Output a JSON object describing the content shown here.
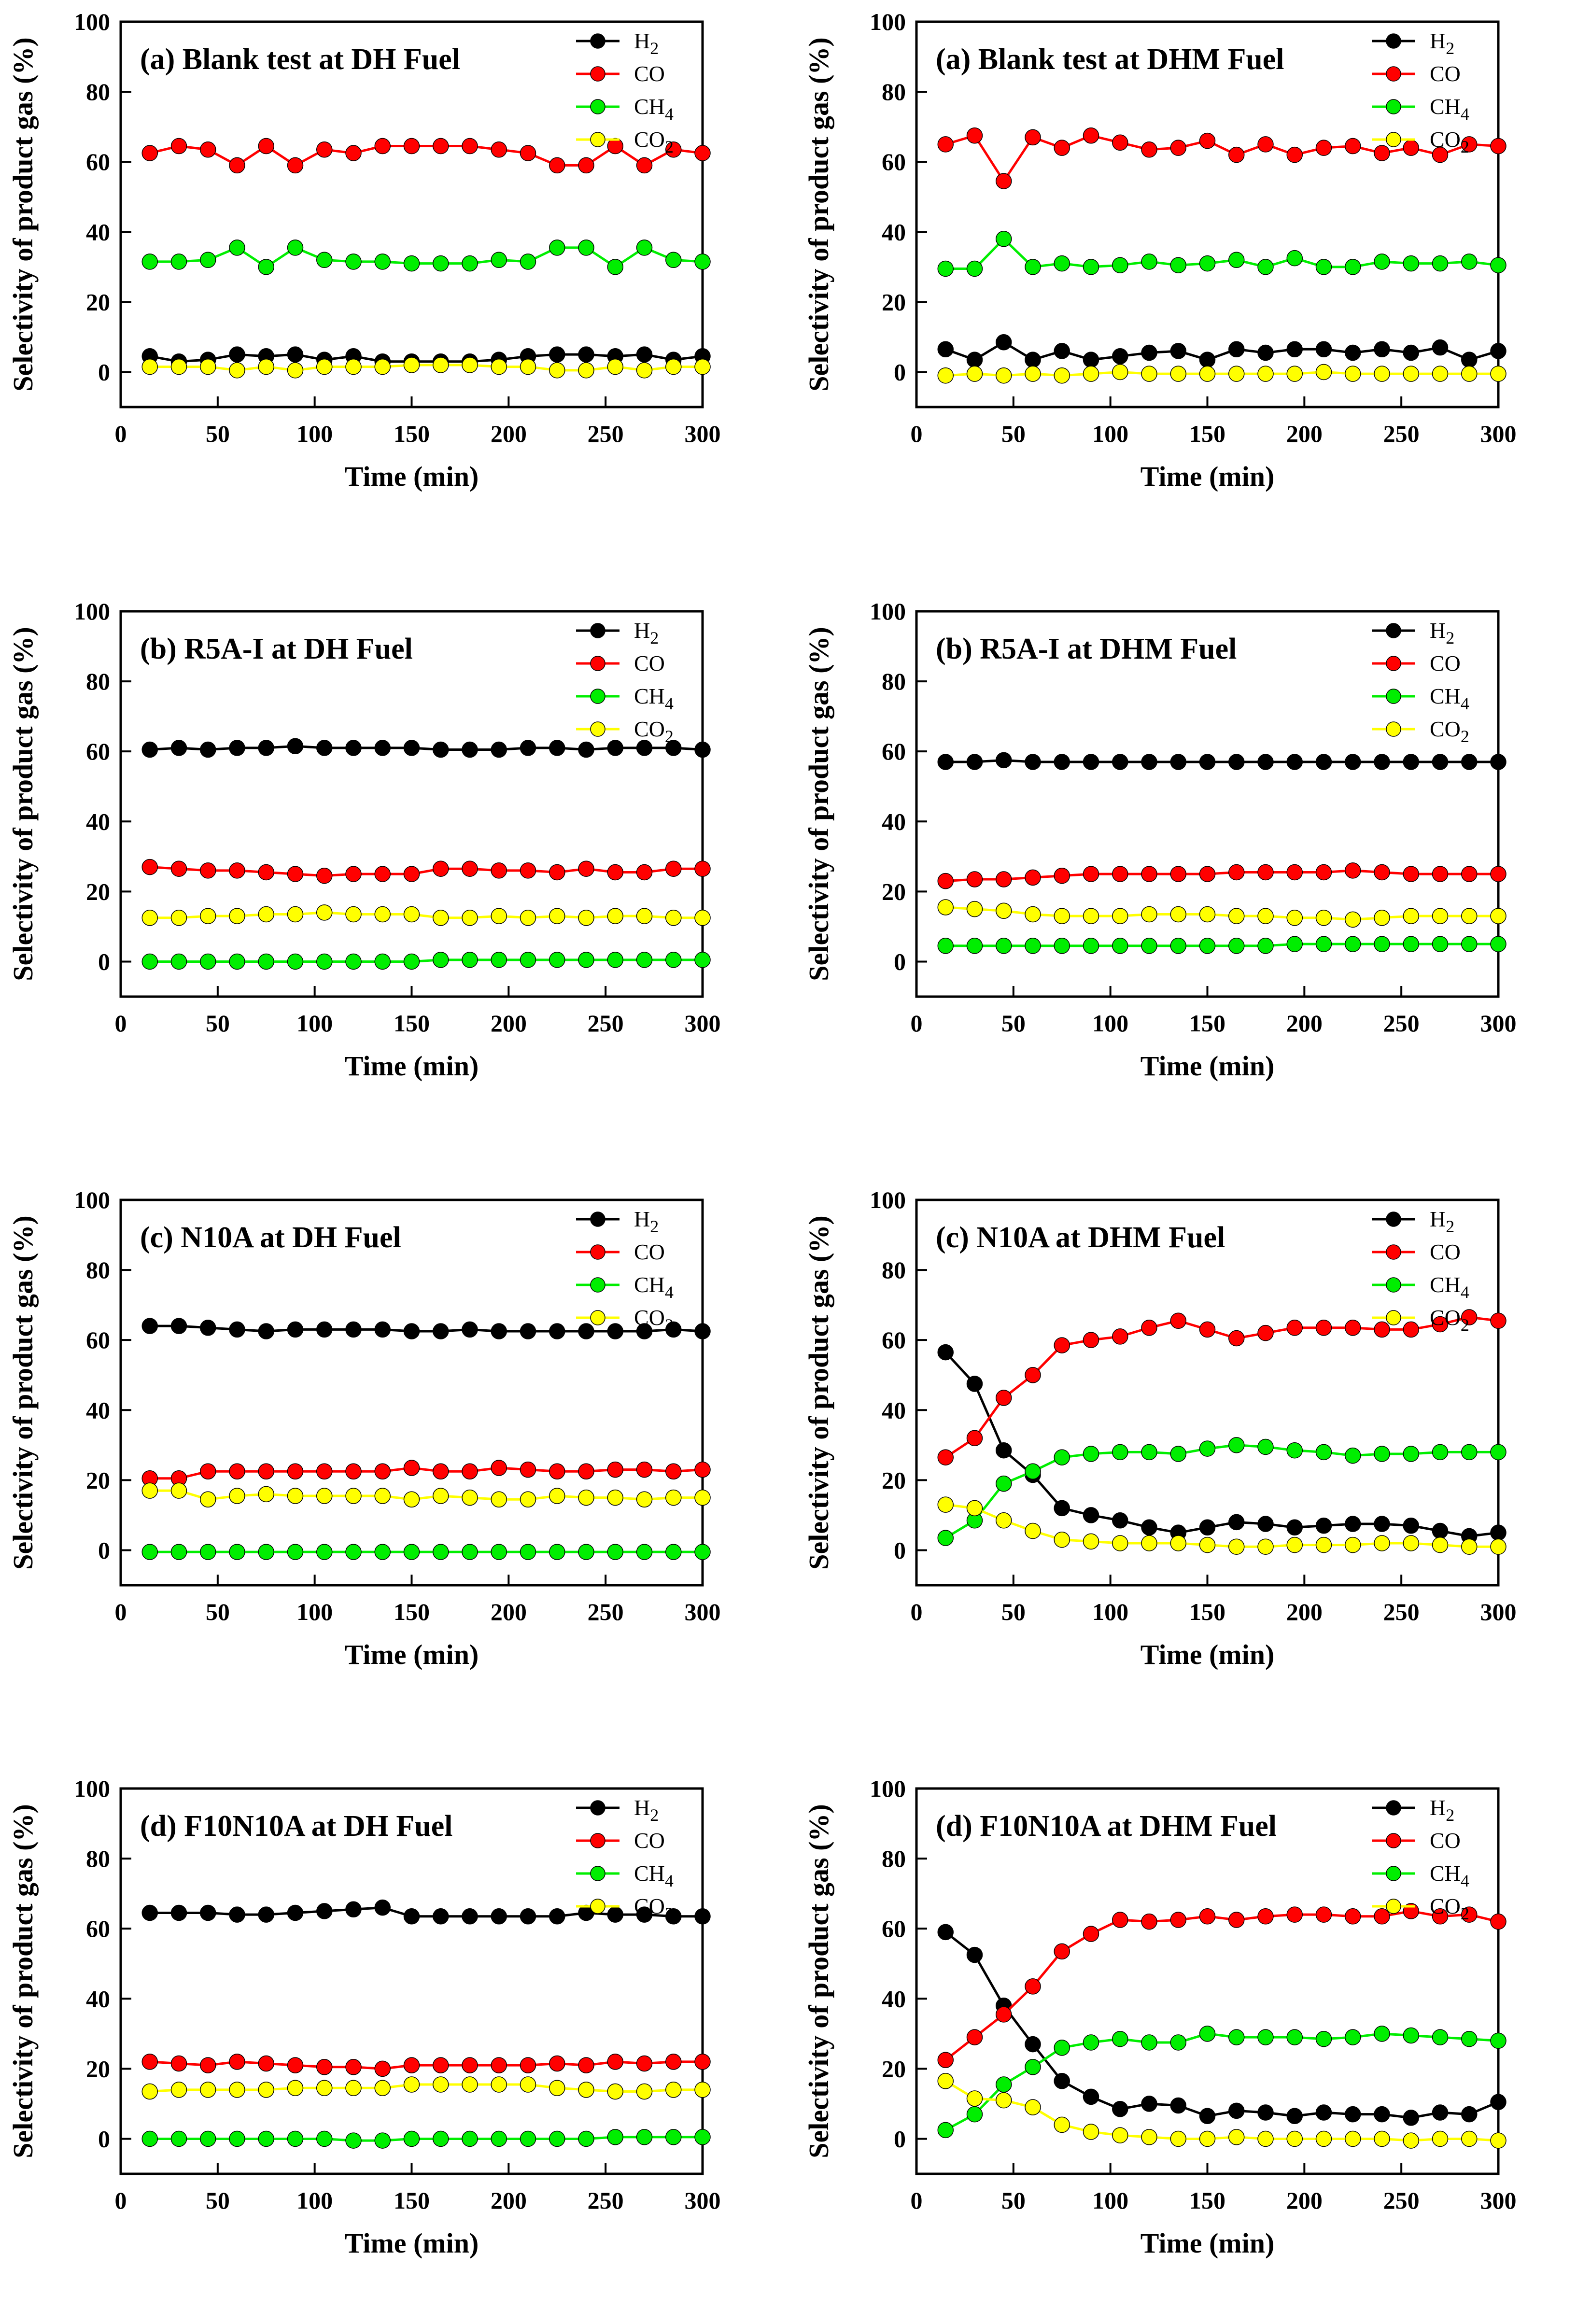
{
  "colors": {
    "H2": "#000000",
    "CO": "#ff0000",
    "CH4": "#00ee00",
    "CO2": "#ffff00"
  },
  "legend": [
    {
      "key": "H2",
      "label": "H",
      "sub": "2"
    },
    {
      "key": "CO",
      "label": "CO",
      "sub": ""
    },
    {
      "key": "CH4",
      "label": "CH",
      "sub": "4"
    },
    {
      "key": "CO2",
      "label": "CO",
      "sub": "2"
    }
  ],
  "axes": {
    "xlabel": "Time (min)",
    "ylabel": "Selectivity of product gas (%)",
    "xlim": [
      0,
      300
    ],
    "ylim": [
      -10,
      100
    ],
    "xticks": [
      0,
      50,
      100,
      150,
      200,
      250,
      300
    ],
    "yticks": [
      0,
      20,
      40,
      60,
      80,
      100
    ]
  },
  "chart_data": [
    {
      "type": "line",
      "title": "(a) Blank test at DH Fuel",
      "x": [
        15,
        30,
        45,
        60,
        75,
        90,
        105,
        120,
        135,
        150,
        165,
        180,
        195,
        210,
        225,
        240,
        255,
        270,
        285,
        300
      ],
      "series": [
        {
          "name": "H2",
          "values": [
            4.5,
            3,
            3.5,
            5,
            4.5,
            5,
            3.5,
            4.5,
            3,
            3,
            3,
            3,
            3.5,
            4.5,
            5,
            5,
            4.5,
            5,
            3.5,
            4.5
          ]
        },
        {
          "name": "CO",
          "values": [
            62.5,
            64.5,
            63.5,
            59,
            64.5,
            59,
            63.5,
            62.5,
            64.5,
            64.5,
            64.5,
            64.5,
            63.5,
            62.5,
            59,
            59,
            64.5,
            59,
            63.5,
            62.5
          ]
        },
        {
          "name": "CH4",
          "values": [
            31.5,
            31.5,
            32,
            35.5,
            30,
            35.5,
            32,
            31.5,
            31.5,
            31,
            31,
            31,
            32,
            31.5,
            35.5,
            35.5,
            30,
            35.5,
            32,
            31.5
          ]
        },
        {
          "name": "CO2",
          "values": [
            1.5,
            1.5,
            1.5,
            0.5,
            1.5,
            0.5,
            1.5,
            1.5,
            1.5,
            2,
            2,
            2,
            1.5,
            1.5,
            0.5,
            0.5,
            1.5,
            0.5,
            1.5,
            1.5
          ]
        }
      ],
      "xlabel": "Time (min)",
      "ylabel": "Selectivity of product gas (%)",
      "xlim": [
        0,
        300
      ],
      "ylim": [
        -10,
        100
      ]
    },
    {
      "type": "line",
      "title": "(a) Blank test at DHM Fuel",
      "x": [
        15,
        30,
        45,
        60,
        75,
        90,
        105,
        120,
        135,
        150,
        165,
        180,
        195,
        210,
        225,
        240,
        255,
        270,
        285,
        300
      ],
      "series": [
        {
          "name": "H2",
          "values": [
            6.5,
            3.5,
            8.5,
            3.5,
            6,
            3.5,
            4.5,
            5.5,
            6,
            3.5,
            6.5,
            5.5,
            6.5,
            6.5,
            5.5,
            6.5,
            5.5,
            7,
            3.5,
            6
          ]
        },
        {
          "name": "CO",
          "values": [
            65,
            67.5,
            54.5,
            67,
            64,
            67.5,
            65.5,
            63.5,
            64,
            66,
            62,
            65,
            62,
            64,
            64.5,
            62.5,
            64,
            62,
            65,
            64.5
          ]
        },
        {
          "name": "CH4",
          "values": [
            29.5,
            29.5,
            38,
            30,
            31,
            30,
            30.5,
            31.5,
            30.5,
            31,
            32,
            30,
            32.5,
            30,
            30,
            31.5,
            31,
            31,
            31.5,
            30.5
          ]
        },
        {
          "name": "CO2",
          "values": [
            -1,
            -0.5,
            -1,
            -0.5,
            -1,
            -0.5,
            0,
            -0.5,
            -0.5,
            -0.5,
            -0.5,
            -0.5,
            -0.5,
            0,
            -0.5,
            -0.5,
            -0.5,
            -0.5,
            -0.5,
            -0.5
          ]
        }
      ],
      "xlabel": "Time (min)",
      "ylabel": "Selectivity of product gas (%)",
      "xlim": [
        0,
        300
      ],
      "ylim": [
        -10,
        100
      ]
    },
    {
      "type": "line",
      "title": "(b) R5A-I at DH Fuel",
      "x": [
        15,
        30,
        45,
        60,
        75,
        90,
        105,
        120,
        135,
        150,
        165,
        180,
        195,
        210,
        225,
        240,
        255,
        270,
        285,
        300
      ],
      "series": [
        {
          "name": "H2",
          "values": [
            60.5,
            61,
            60.5,
            61,
            61,
            61.5,
            61,
            61,
            61,
            61,
            60.5,
            60.5,
            60.5,
            61,
            61,
            60.5,
            61,
            61,
            61,
            60.5
          ]
        },
        {
          "name": "CO",
          "values": [
            27,
            26.5,
            26,
            26,
            25.5,
            25,
            24.5,
            25,
            25,
            25,
            26.5,
            26.5,
            26,
            26,
            25.5,
            26.5,
            25.5,
            25.5,
            26.5,
            26.5
          ]
        },
        {
          "name": "CH4",
          "values": [
            0,
            0,
            0,
            0,
            0,
            0,
            0,
            0,
            0,
            0,
            0.5,
            0.5,
            0.5,
            0.5,
            0.5,
            0.5,
            0.5,
            0.5,
            0.5,
            0.5
          ]
        },
        {
          "name": "CO2",
          "values": [
            12.5,
            12.5,
            13,
            13,
            13.5,
            13.5,
            14,
            13.5,
            13.5,
            13.5,
            12.5,
            12.5,
            13,
            12.5,
            13,
            12.5,
            13,
            13,
            12.5,
            12.5
          ]
        }
      ],
      "xlabel": "Time (min)",
      "ylabel": "Selectivity of product gas (%)",
      "xlim": [
        0,
        300
      ],
      "ylim": [
        -10,
        100
      ]
    },
    {
      "type": "line",
      "title": "(b) R5A-I at DHM Fuel",
      "x": [
        15,
        30,
        45,
        60,
        75,
        90,
        105,
        120,
        135,
        150,
        165,
        180,
        195,
        210,
        225,
        240,
        255,
        270,
        285,
        300
      ],
      "series": [
        {
          "name": "H2",
          "values": [
            57,
            57,
            57.5,
            57,
            57,
            57,
            57,
            57,
            57,
            57,
            57,
            57,
            57,
            57,
            57,
            57,
            57,
            57,
            57,
            57
          ]
        },
        {
          "name": "CO",
          "values": [
            23,
            23.5,
            23.5,
            24,
            24.5,
            25,
            25,
            25,
            25,
            25,
            25.5,
            25.5,
            25.5,
            25.5,
            26,
            25.5,
            25,
            25,
            25,
            25
          ]
        },
        {
          "name": "CH4",
          "values": [
            4.5,
            4.5,
            4.5,
            4.5,
            4.5,
            4.5,
            4.5,
            4.5,
            4.5,
            4.5,
            4.5,
            4.5,
            5,
            5,
            5,
            5,
            5,
            5,
            5,
            5
          ]
        },
        {
          "name": "CO2",
          "values": [
            15.5,
            15,
            14.5,
            13.5,
            13,
            13,
            13,
            13.5,
            13.5,
            13.5,
            13,
            13,
            12.5,
            12.5,
            12,
            12.5,
            13,
            13,
            13,
            13
          ]
        }
      ],
      "xlabel": "Time (min)",
      "ylabel": "Selectivity of product gas (%)",
      "xlim": [
        0,
        300
      ],
      "ylim": [
        -10,
        100
      ]
    },
    {
      "type": "line",
      "title": "(c) N10A at DH Fuel",
      "x": [
        15,
        30,
        45,
        60,
        75,
        90,
        105,
        120,
        135,
        150,
        165,
        180,
        195,
        210,
        225,
        240,
        255,
        270,
        285,
        300
      ],
      "series": [
        {
          "name": "H2",
          "values": [
            64,
            64,
            63.5,
            63,
            62.5,
            63,
            63,
            63,
            63,
            62.5,
            62.5,
            63,
            62.5,
            62.5,
            62.5,
            62.5,
            62.5,
            62.5,
            63,
            62.5
          ]
        },
        {
          "name": "CO",
          "values": [
            20.5,
            20.5,
            22.5,
            22.5,
            22.5,
            22.5,
            22.5,
            22.5,
            22.5,
            23.5,
            22.5,
            22.5,
            23.5,
            23,
            22.5,
            22.5,
            23,
            23,
            22.5,
            23
          ]
        },
        {
          "name": "CH4",
          "values": [
            -0.5,
            -0.5,
            -0.5,
            -0.5,
            -0.5,
            -0.5,
            -0.5,
            -0.5,
            -0.5,
            -0.5,
            -0.5,
            -0.5,
            -0.5,
            -0.5,
            -0.5,
            -0.5,
            -0.5,
            -0.5,
            -0.5,
            -0.5
          ]
        },
        {
          "name": "CO2",
          "values": [
            17,
            17,
            14.5,
            15.5,
            16,
            15.5,
            15.5,
            15.5,
            15.5,
            14.5,
            15.5,
            15,
            14.5,
            14.5,
            15.5,
            15,
            15,
            14.5,
            15,
            15
          ]
        }
      ],
      "xlabel": "Time (min)",
      "ylabel": "Selectivity of product gas (%)",
      "xlim": [
        0,
        300
      ],
      "ylim": [
        -10,
        100
      ]
    },
    {
      "type": "line",
      "title": "(c) N10A at DHM Fuel",
      "x": [
        15,
        30,
        45,
        60,
        75,
        90,
        105,
        120,
        135,
        150,
        165,
        180,
        195,
        210,
        225,
        240,
        255,
        270,
        285,
        300
      ],
      "series": [
        {
          "name": "H2",
          "values": [
            56.5,
            47.5,
            28.5,
            21.5,
            12,
            10,
            8.5,
            6.5,
            5,
            6.5,
            8,
            7.5,
            6.5,
            7,
            7.5,
            7.5,
            7,
            5.5,
            4,
            5
          ]
        },
        {
          "name": "CO",
          "values": [
            26.5,
            32,
            43.5,
            50,
            58.5,
            60,
            61,
            63.5,
            65.5,
            63,
            60.5,
            62,
            63.5,
            63.5,
            63.5,
            63,
            63,
            64.5,
            66.5,
            65.5
          ]
        },
        {
          "name": "CH4",
          "values": [
            3.5,
            8.5,
            19,
            22.5,
            26.5,
            27.5,
            28,
            28,
            27.5,
            29,
            30,
            29.5,
            28.5,
            28,
            27,
            27.5,
            27.5,
            28,
            28,
            28
          ]
        },
        {
          "name": "CO2",
          "values": [
            13,
            12,
            8.5,
            5.5,
            3,
            2.5,
            2,
            2,
            2,
            1.5,
            1,
            1,
            1.5,
            1.5,
            1.5,
            2,
            2,
            1.5,
            1,
            1
          ]
        }
      ],
      "xlabel": "Time (min)",
      "ylabel": "Selectivity of product gas (%)",
      "xlim": [
        0,
        300
      ],
      "ylim": [
        -10,
        100
      ]
    },
    {
      "type": "line",
      "title": "(d) F10N10A at DH Fuel",
      "x": [
        15,
        30,
        45,
        60,
        75,
        90,
        105,
        120,
        135,
        150,
        165,
        180,
        195,
        210,
        225,
        240,
        255,
        270,
        285,
        300
      ],
      "series": [
        {
          "name": "H2",
          "values": [
            64.5,
            64.5,
            64.5,
            64,
            64,
            64.5,
            65,
            65.5,
            66,
            63.5,
            63.5,
            63.5,
            63.5,
            63.5,
            63.5,
            64.5,
            64,
            64,
            63.5,
            63.5
          ]
        },
        {
          "name": "CO",
          "values": [
            22,
            21.5,
            21,
            22,
            21.5,
            21,
            20.5,
            20.5,
            20,
            21,
            21,
            21,
            21,
            21,
            21.5,
            21,
            22,
            21.5,
            22,
            22
          ]
        },
        {
          "name": "CH4",
          "values": [
            0,
            0,
            0,
            0,
            0,
            0,
            0,
            -0.5,
            -0.5,
            0,
            0,
            0,
            0,
            0,
            0,
            0,
            0.5,
            0.5,
            0.5,
            0.5
          ]
        },
        {
          "name": "CO2",
          "values": [
            13.5,
            14,
            14,
            14,
            14,
            14.5,
            14.5,
            14.5,
            14.5,
            15.5,
            15.5,
            15.5,
            15.5,
            15.5,
            14.5,
            14,
            13.5,
            13.5,
            14,
            14
          ]
        }
      ],
      "xlabel": "Time (min)",
      "ylabel": "Selectivity of product gas (%)",
      "xlim": [
        0,
        300
      ],
      "ylim": [
        -10,
        100
      ]
    },
    {
      "type": "line",
      "title": "(d) F10N10A at DHM Fuel",
      "x": [
        15,
        30,
        45,
        60,
        75,
        90,
        105,
        120,
        135,
        150,
        165,
        180,
        195,
        210,
        225,
        240,
        255,
        270,
        285,
        300
      ],
      "series": [
        {
          "name": "H2",
          "values": [
            59,
            52.5,
            38,
            27,
            16.5,
            12,
            8.5,
            10,
            9.5,
            6.5,
            8,
            7.5,
            6.5,
            7.5,
            7,
            7,
            6,
            7.5,
            7,
            10.5
          ]
        },
        {
          "name": "CO",
          "values": [
            22.5,
            29,
            35.5,
            43.5,
            53.5,
            58.5,
            62.5,
            62,
            62.5,
            63.5,
            62.5,
            63.5,
            64,
            64,
            63.5,
            63.5,
            65,
            63.5,
            64,
            62
          ]
        },
        {
          "name": "CH4",
          "values": [
            2.5,
            7,
            15.5,
            20.5,
            26,
            27.5,
            28.5,
            27.5,
            27.5,
            30,
            29,
            29,
            29,
            28.5,
            29,
            30,
            29.5,
            29,
            28.5,
            28
          ]
        },
        {
          "name": "CO2",
          "values": [
            16.5,
            11.5,
            11,
            9,
            4,
            2,
            1,
            0.5,
            0,
            0,
            0.5,
            0,
            0,
            0,
            0,
            0,
            -0.5,
            0,
            0,
            -0.5
          ]
        }
      ],
      "xlabel": "Time (min)",
      "ylabel": "Selectivity of product gas (%)",
      "xlim": [
        0,
        300
      ],
      "ylim": [
        -10,
        100
      ]
    }
  ]
}
